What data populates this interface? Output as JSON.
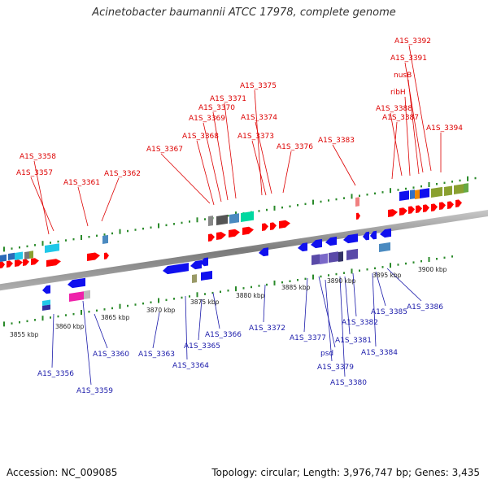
{
  "title": "Acinetobacter baumannii ATCC 17978, complete genome",
  "footer": {
    "accession": "Accession: NC_009085",
    "topology": "Topology: circular; Length: 3,976,747 bp; Genes: 3,435"
  },
  "colors": {
    "top_label": "#dd0000",
    "bottom_label": "#1a1aaa",
    "backbone": "#888888",
    "tick": "#2a8a2a"
  },
  "kbp_labels": [
    "3855 kbp",
    "3860 kbp",
    "3865 kbp",
    "3870 kbp",
    "3875 kbp",
    "3880 kbp",
    "3885 kbp",
    "3890 kbp",
    "3895 kbp",
    "3900 kbp"
  ],
  "top_genes": [
    "A1S_3358",
    "A1S_3357",
    "A1S_3361",
    "A1S_3362",
    "A1S_3367",
    "A1S_3368",
    "A1S_3369",
    "A1S_3370",
    "A1S_3371",
    "A1S_3375",
    "A1S_3374",
    "A1S_3373",
    "A1S_3376",
    "A1S_3383",
    "A1S_3387",
    "A1S_3388",
    "ribH",
    "nusB",
    "A1S_3391",
    "A1S_3392",
    "A1S_3394"
  ],
  "bottom_genes": [
    "A1S_3356",
    "A1S_3359",
    "A1S_3360",
    "A1S_3363",
    "A1S_3364",
    "A1S_3365",
    "A1S_3366",
    "A1S_3372",
    "A1S_3377",
    "psd",
    "A1S_3379",
    "A1S_3380",
    "A1S_3381",
    "A1S_3382",
    "A1S_3384",
    "A1S_3385",
    "A1S_3386"
  ]
}
